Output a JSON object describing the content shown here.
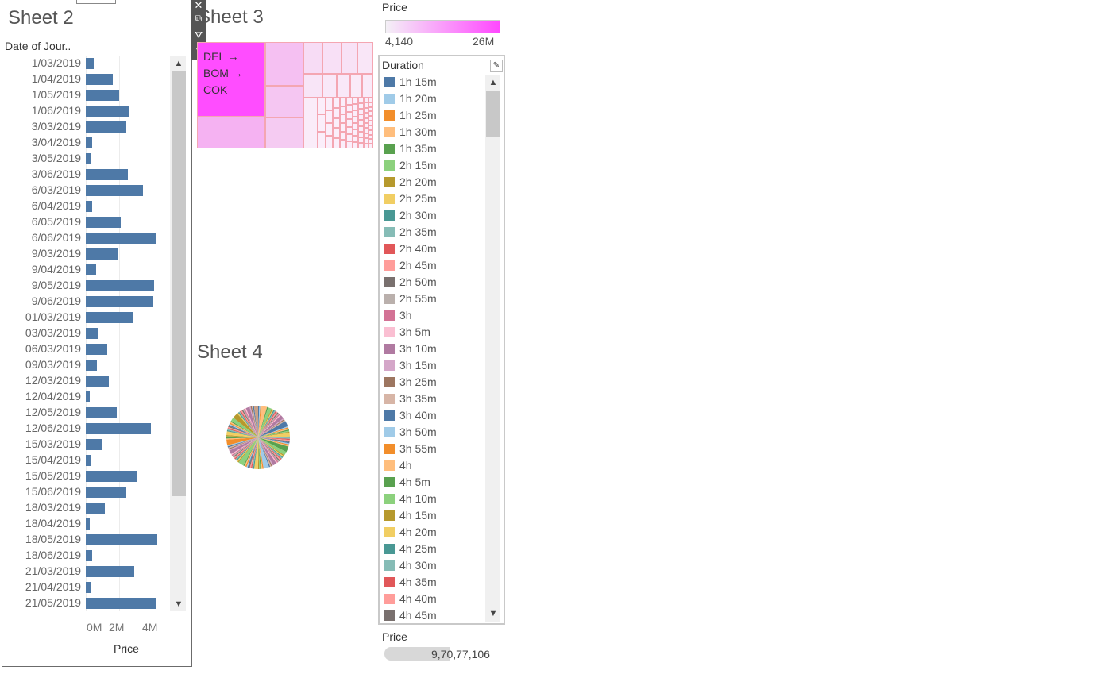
{
  "sheet2": {
    "title": "Sheet 2",
    "field_label": "Date of Jour..",
    "axis_title": "Price",
    "axis_ticks": [
      "0M",
      "2M",
      "4M"
    ],
    "scroll_up": "▲",
    "scroll_down": "▼"
  },
  "chart_data": {
    "type": "bar",
    "orientation": "horizontal",
    "categories": [
      "1/03/2019",
      "1/04/2019",
      "1/05/2019",
      "1/06/2019",
      "3/03/2019",
      "3/04/2019",
      "3/05/2019",
      "3/06/2019",
      "6/03/2019",
      "6/04/2019",
      "6/05/2019",
      "6/06/2019",
      "9/03/2019",
      "9/04/2019",
      "9/05/2019",
      "9/06/2019",
      "01/03/2019",
      "03/03/2019",
      "06/03/2019",
      "09/03/2019",
      "12/03/2019",
      "12/04/2019",
      "12/05/2019",
      "12/06/2019",
      "15/03/2019",
      "15/04/2019",
      "15/05/2019",
      "15/06/2019",
      "18/03/2019",
      "18/04/2019",
      "18/05/2019",
      "18/06/2019",
      "21/03/2019",
      "21/04/2019",
      "21/05/2019"
    ],
    "values": [
      0.47,
      1.62,
      2.03,
      2.62,
      2.43,
      0.4,
      0.34,
      2.53,
      3.45,
      0.39,
      2.11,
      4.23,
      1.96,
      0.64,
      4.13,
      4.11,
      2.87,
      0.74,
      1.32,
      0.66,
      1.39,
      0.24,
      1.87,
      3.92,
      0.96,
      0.33,
      3.07,
      2.45,
      1.17,
      0.25,
      4.31,
      0.39,
      2.94,
      0.33,
      4.23
    ],
    "xlabel": "Price",
    "ylabel": "Date of Jour..",
    "xlim": [
      0,
      5
    ],
    "grid": true
  },
  "toolbar": {
    "close": "✕",
    "popout": "⧉",
    "filter": "⛛",
    "menu": "▾"
  },
  "sheet3": {
    "title": "Sheet 3",
    "label_lines": [
      "DEL →",
      "BOM →",
      "COK"
    ]
  },
  "sheet4": {
    "title": "Sheet 4"
  },
  "price_legend": {
    "title": "Price",
    "min": "4,140",
    "max": "26M",
    "color_low": "#f4f0f6",
    "color_high": "#ff48ff"
  },
  "duration_legend": {
    "title": "Duration",
    "edit_icon": "✎",
    "scroll_up": "▲",
    "scroll_down": "▼",
    "items": [
      {
        "label": "1h 15m",
        "color": "#4e79a7"
      },
      {
        "label": "1h 20m",
        "color": "#a0cbe8"
      },
      {
        "label": "1h 25m",
        "color": "#f28e2b"
      },
      {
        "label": "1h 30m",
        "color": "#ffbe7d"
      },
      {
        "label": "1h 35m",
        "color": "#59a14f"
      },
      {
        "label": "2h 15m",
        "color": "#8cd17d"
      },
      {
        "label": "2h 20m",
        "color": "#b6992d"
      },
      {
        "label": "2h 25m",
        "color": "#f1ce63"
      },
      {
        "label": "2h 30m",
        "color": "#499894"
      },
      {
        "label": "2h 35m",
        "color": "#86bcb6"
      },
      {
        "label": "2h 40m",
        "color": "#e15759"
      },
      {
        "label": "2h 45m",
        "color": "#ff9d9a"
      },
      {
        "label": "2h 50m",
        "color": "#79706e"
      },
      {
        "label": "2h 55m",
        "color": "#bab0ac"
      },
      {
        "label": "3h",
        "color": "#d37295"
      },
      {
        "label": "3h 5m",
        "color": "#fabfd2"
      },
      {
        "label": "3h 10m",
        "color": "#b07aa1"
      },
      {
        "label": "3h 15m",
        "color": "#d4a6c8"
      },
      {
        "label": "3h 25m",
        "color": "#9d7660"
      },
      {
        "label": "3h 35m",
        "color": "#d7b5a6"
      },
      {
        "label": "3h 40m",
        "color": "#4e79a7"
      },
      {
        "label": "3h 50m",
        "color": "#a0cbe8"
      },
      {
        "label": "3h 55m",
        "color": "#f28e2b"
      },
      {
        "label": "4h",
        "color": "#ffbe7d"
      },
      {
        "label": "4h 5m",
        "color": "#59a14f"
      },
      {
        "label": "4h 10m",
        "color": "#8cd17d"
      },
      {
        "label": "4h 15m",
        "color": "#b6992d"
      },
      {
        "label": "4h 20m",
        "color": "#f1ce63"
      },
      {
        "label": "4h 25m",
        "color": "#499894"
      },
      {
        "label": "4h 30m",
        "color": "#86bcb6"
      },
      {
        "label": "4h 35m",
        "color": "#e15759"
      },
      {
        "label": "4h 40m",
        "color": "#ff9d9a"
      },
      {
        "label": "4h 45m",
        "color": "#79706e"
      }
    ]
  },
  "price_filter": {
    "title": "Price",
    "value": "9,70,77,106"
  }
}
